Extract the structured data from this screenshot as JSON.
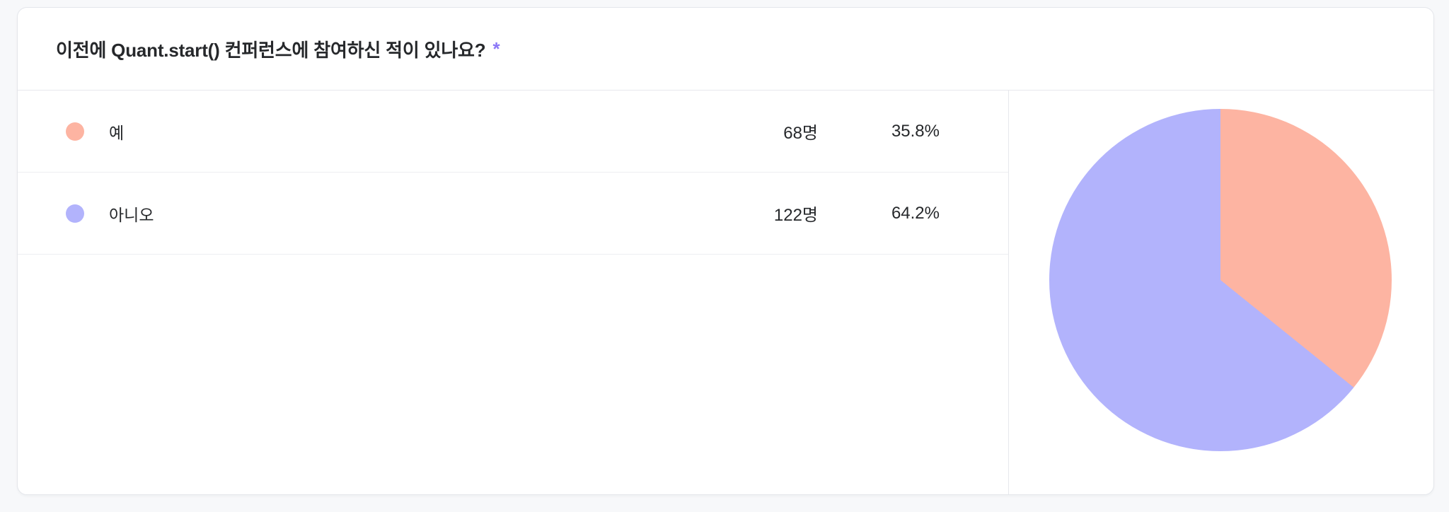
{
  "page": {
    "background": "#F7F8FA"
  },
  "question": {
    "title": "이전에 Quant.start() 컨퍼런스에 참여하신 적이 있나요?",
    "required_marker": "*",
    "required_color": "#8B77F7"
  },
  "options": [
    {
      "label": "예",
      "count": "68명",
      "percent": "35.8%",
      "color": "#FDB4A2"
    },
    {
      "label": "아니오",
      "count": "122명",
      "percent": "64.2%",
      "color": "#B2B3FC"
    }
  ],
  "chart_data": {
    "type": "pie",
    "title": "이전에 Quant.start() 컨퍼런스에 참여하신 적이 있나요?",
    "categories": [
      "예",
      "아니오"
    ],
    "values": [
      68,
      122
    ],
    "value_unit": "명",
    "percentages": [
      35.8,
      64.2
    ],
    "colors": [
      "#FDB4A2",
      "#B2B3FC"
    ],
    "start_angle_deg": 0,
    "direction": "clockwise",
    "legend_position": "left-rows"
  }
}
